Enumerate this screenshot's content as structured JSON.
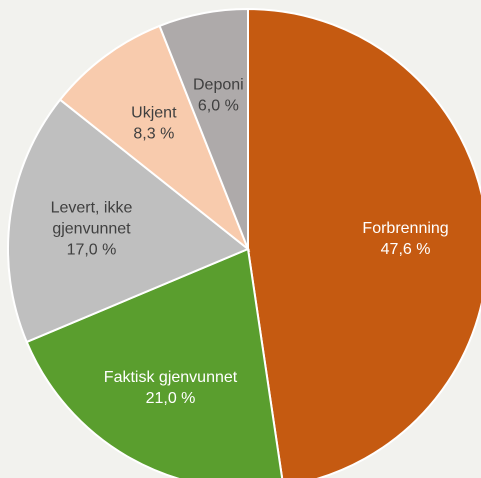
{
  "chart_data": {
    "type": "pie",
    "title": "",
    "start_angle_deg": 0,
    "direction": "clockwise",
    "slices": [
      {
        "name": "Forbrenning",
        "label_lines": [
          "Forbrenning"
        ],
        "value": 47.6,
        "value_label": "47,6 %",
        "color": "#c55a11",
        "text_color": "#ffffff"
      },
      {
        "name": "Faktisk gjenvunnet",
        "label_lines": [
          "Faktisk gjenvunnet"
        ],
        "value": 21.0,
        "value_label": "21,0 %",
        "color": "#5a9e2e",
        "text_color": "#ffffff"
      },
      {
        "name": "Levert, ikke gjenvunnet",
        "label_lines": [
          "Levert, ikke",
          "gjenvunnet"
        ],
        "value": 17.0,
        "value_label": "17,0 %",
        "color": "#bfbfbf",
        "text_color": "#404040"
      },
      {
        "name": "Ukjent",
        "label_lines": [
          "Ukjent"
        ],
        "value": 8.3,
        "value_label": "8,3 %",
        "color": "#f8cbad",
        "text_color": "#404040"
      },
      {
        "name": "Deponi",
        "label_lines": [
          "Deponi"
        ],
        "value": 6.0,
        "value_label": "6,0 %",
        "color": "#aeaaaa",
        "text_color": "#404040"
      }
    ]
  }
}
